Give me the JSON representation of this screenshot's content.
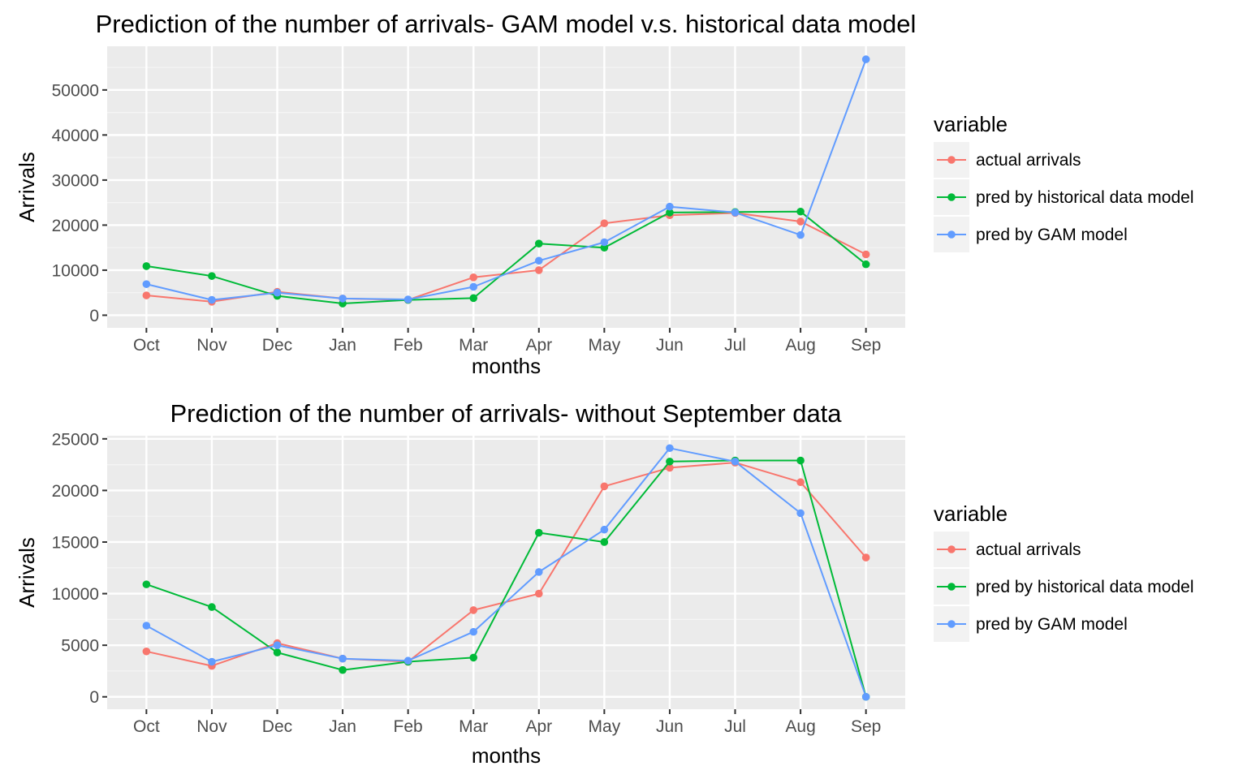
{
  "colors": {
    "panel_bg": "#EBEBEB",
    "grid_major": "#FFFFFF",
    "grid_minor": "#F5F5F5",
    "text_dark": "#000000",
    "tick_text": "#4D4D4D",
    "tick_mark": "#333333"
  },
  "chart_data": [
    {
      "type": "line",
      "title": "Prediction of the number of arrivals- GAM model v.s. historical data model",
      "xlabel": "months",
      "ylabel": "Arrivals",
      "categories": [
        "Oct",
        "Nov",
        "Dec",
        "Jan",
        "Feb",
        "Mar",
        "Apr",
        "May",
        "Jun",
        "Jul",
        "Aug",
        "Sep"
      ],
      "ylim": [
        -2800,
        59700
      ],
      "yticks": [
        0,
        10000,
        20000,
        30000,
        40000,
        50000
      ],
      "ytick_labels": [
        "0",
        "10000",
        "20000",
        "30000",
        "40000",
        "50000"
      ],
      "grid": true,
      "legend": {
        "title": "variable",
        "position": "right",
        "entries": [
          "actual arrivals",
          "pred by historical data model",
          "pred by GAM model"
        ]
      },
      "series": [
        {
          "name": "actual arrivals",
          "color": "#F8766D",
          "values": [
            4400,
            3000,
            5200,
            3700,
            3400,
            8400,
            10000,
            20400,
            22200,
            22700,
            20800,
            13500
          ]
        },
        {
          "name": "pred by historical data model",
          "color": "#00BA38",
          "values": [
            10900,
            8700,
            4300,
            2600,
            3400,
            3800,
            15900,
            15000,
            22800,
            22900,
            23000,
            11300
          ]
        },
        {
          "name": "pred by GAM model",
          "color": "#619CFF",
          "values": [
            6900,
            3400,
            5000,
            3700,
            3500,
            6300,
            12100,
            16200,
            24100,
            22800,
            17800,
            56800
          ]
        }
      ]
    },
    {
      "type": "line",
      "title": "Prediction of the number of arrivals- without September data",
      "xlabel": "months",
      "ylabel": "Arrivals",
      "categories": [
        "Oct",
        "Nov",
        "Dec",
        "Jan",
        "Feb",
        "Mar",
        "Apr",
        "May",
        "Jun",
        "Jul",
        "Aug",
        "Sep"
      ],
      "ylim": [
        -1200,
        25300
      ],
      "yticks": [
        0,
        5000,
        10000,
        15000,
        20000,
        25000
      ],
      "ytick_labels": [
        "0",
        "5000",
        "10000",
        "15000",
        "20000",
        "25000"
      ],
      "grid": true,
      "legend": {
        "title": "variable",
        "position": "right",
        "entries": [
          "actual arrivals",
          "pred by historical data model",
          "pred by GAM model"
        ]
      },
      "series": [
        {
          "name": "actual arrivals",
          "color": "#F8766D",
          "values": [
            4400,
            3000,
            5200,
            3700,
            3400,
            8400,
            10000,
            20400,
            22200,
            22700,
            20800,
            13500
          ]
        },
        {
          "name": "pred by historical data model",
          "color": "#00BA38",
          "values": [
            10900,
            8700,
            4300,
            2600,
            3400,
            3800,
            15900,
            15000,
            22800,
            22900,
            22900,
            0
          ]
        },
        {
          "name": "pred by GAM model",
          "color": "#619CFF",
          "values": [
            6900,
            3400,
            5000,
            3700,
            3500,
            6300,
            12100,
            16200,
            24100,
            22800,
            17800,
            0
          ]
        }
      ]
    }
  ]
}
